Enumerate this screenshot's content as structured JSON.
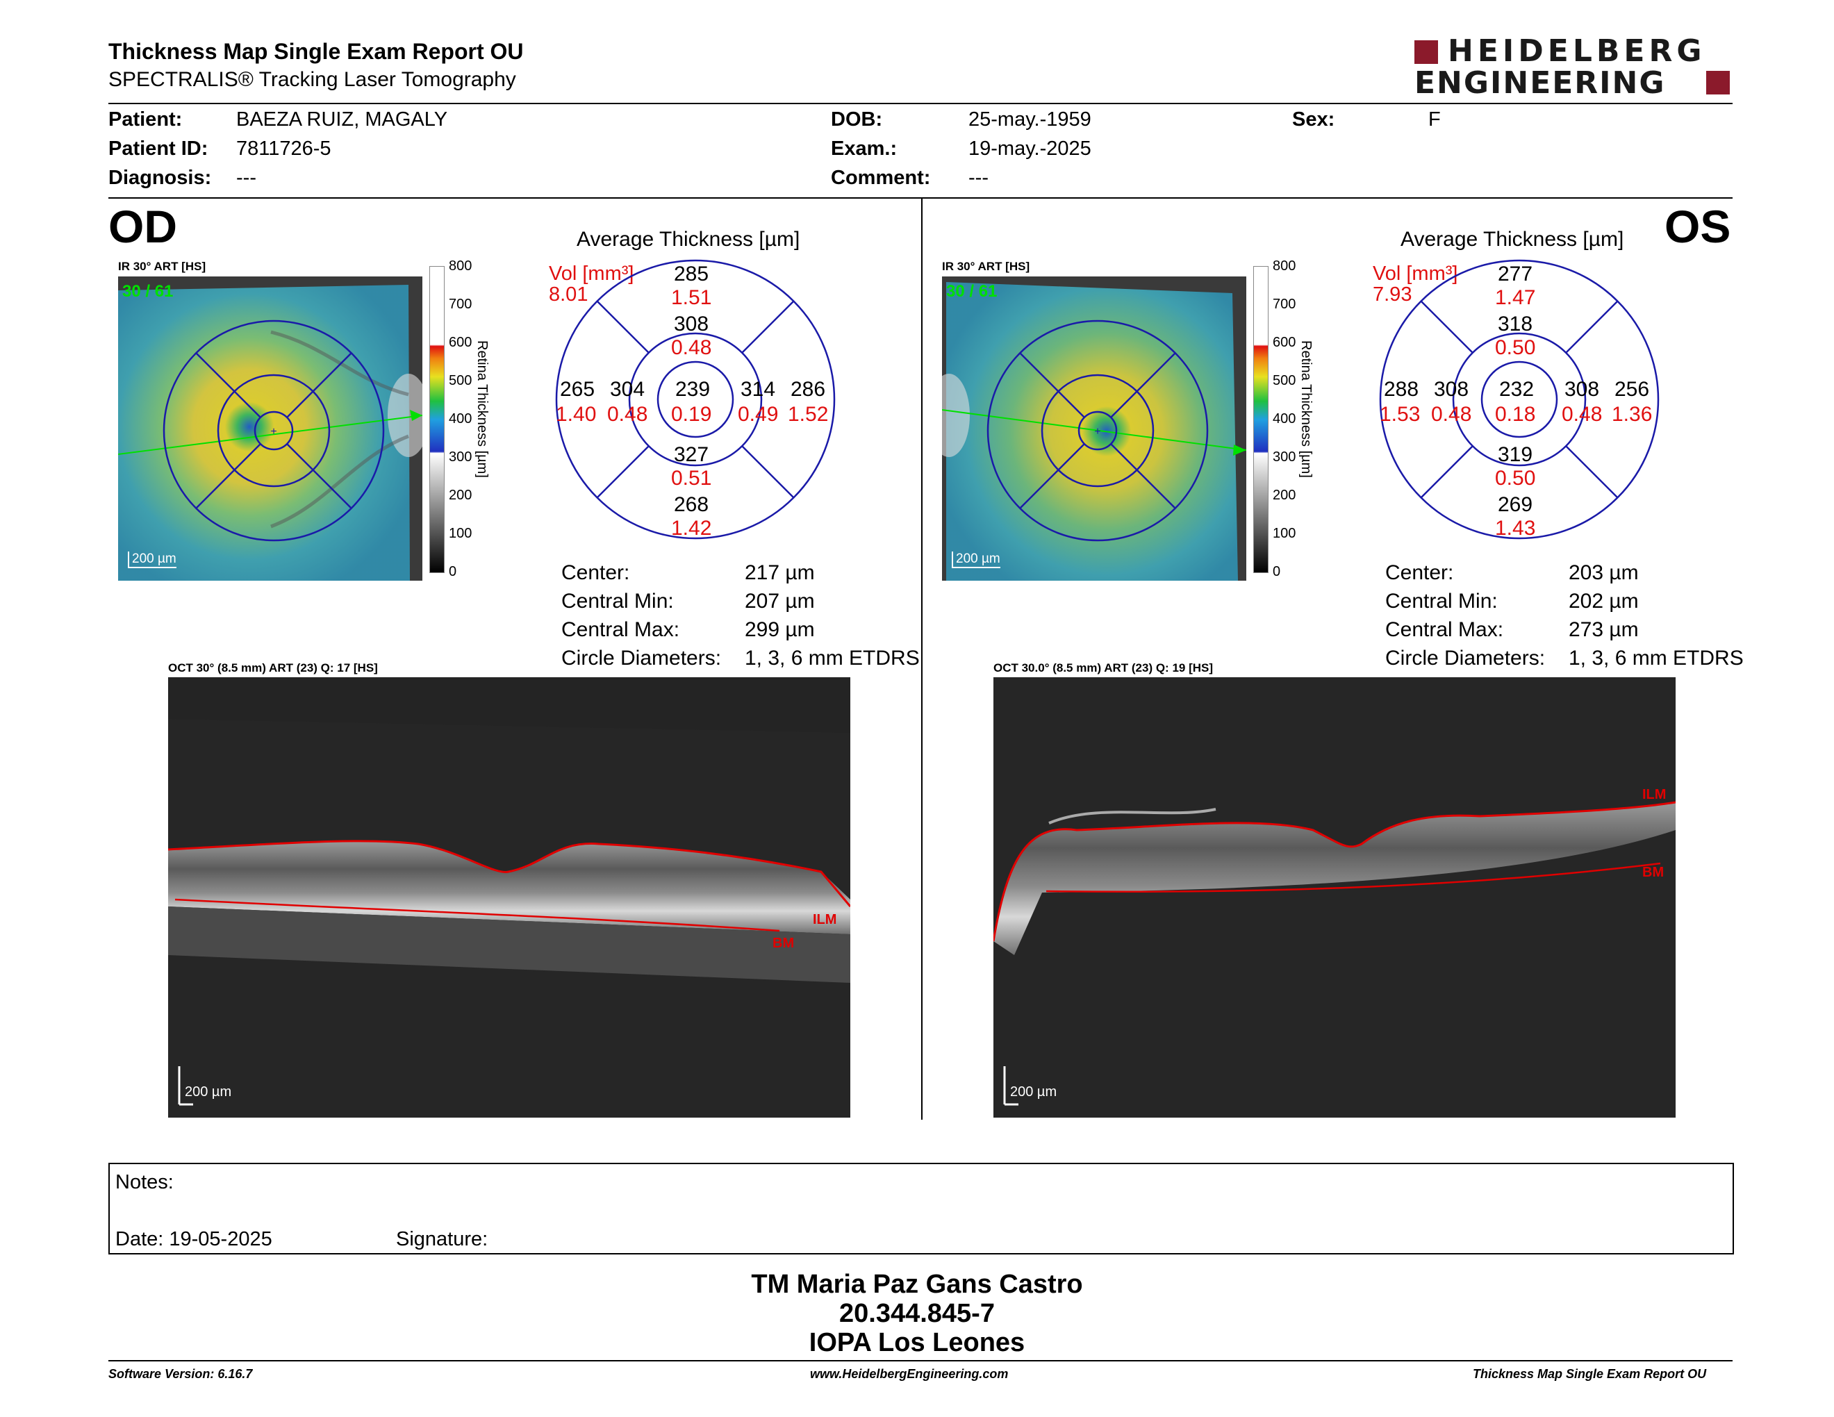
{
  "header": {
    "title": "Thickness Map Single Exam Report OU",
    "subtitle": "SPECTRALIS® Tracking Laser Tomography",
    "logo_line1": "HEIDELBERG",
    "logo_line2": "ENGINEERING",
    "brand_color": "#8b1a2b"
  },
  "patient": {
    "patient_label": "Patient:",
    "patient_value": "BAEZA RUIZ, MAGALY",
    "id_label": "Patient ID:",
    "id_value": "7811726-5",
    "diagnosis_label": "Diagnosis:",
    "diagnosis_value": "---",
    "dob_label": "DOB:",
    "dob_value": "25-may.-1959",
    "exam_label": "Exam.:",
    "exam_value": "19-may.-2025",
    "comment_label": "Comment:",
    "comment_value": "---",
    "sex_label": "Sex:",
    "sex_value": "F"
  },
  "od": {
    "eye": "OD",
    "ir_caption": "IR 30° ART [HS]",
    "frame_count": "30 / 61",
    "scale_label": "200 µm",
    "avg_title": "Average Thickness [µm]",
    "vol_label": "Vol [mm³]",
    "vol_value": "8.01",
    "sectors": {
      "superior_outer": [
        "285",
        "1.51"
      ],
      "superior_inner": [
        "308",
        "0.48"
      ],
      "temporal_outer": [
        "265",
        "1.40"
      ],
      "temporal_inner": [
        "304",
        "0.48"
      ],
      "center": [
        "239",
        "0.19"
      ],
      "nasal_inner": [
        "314",
        "0.49"
      ],
      "nasal_outer": [
        "286",
        "1.52"
      ],
      "inferior_inner": [
        "327",
        "0.51"
      ],
      "inferior_outer": [
        "268",
        "1.42"
      ]
    },
    "stats": [
      {
        "label": "Center:",
        "value": "217 µm"
      },
      {
        "label": "Central Min:",
        "value": "207 µm"
      },
      {
        "label": "Central Max:",
        "value": "299 µm"
      },
      {
        "label": "Circle Diameters:",
        "value": "1, 3, 6 mm ETDRS"
      }
    ],
    "oct_caption": "OCT 30° (8.5 mm) ART (23) Q: 17 [HS]",
    "oct_scale": "200 µm",
    "ilm_label": "ILM",
    "bm_label": "BM"
  },
  "os": {
    "eye": "OS",
    "ir_caption": "IR 30° ART [HS]",
    "frame_count": "30 / 61",
    "scale_label": "200 µm",
    "avg_title": "Average Thickness [µm]",
    "vol_label": "Vol [mm³]",
    "vol_value": "7.93",
    "sectors": {
      "superior_outer": [
        "277",
        "1.47"
      ],
      "superior_inner": [
        "318",
        "0.50"
      ],
      "temporal_outer": [
        "288",
        "1.53"
      ],
      "temporal_inner": [
        "308",
        "0.48"
      ],
      "center": [
        "232",
        "0.18"
      ],
      "nasal_inner": [
        "308",
        "0.48"
      ],
      "nasal_outer": [
        "256",
        "1.36"
      ],
      "inferior_inner": [
        "319",
        "0.50"
      ],
      "inferior_outer": [
        "269",
        "1.43"
      ]
    },
    "stats": [
      {
        "label": "Center:",
        "value": "203 µm"
      },
      {
        "label": "Central Min:",
        "value": "202 µm"
      },
      {
        "label": "Central Max:",
        "value": "273 µm"
      },
      {
        "label": "Circle Diameters:",
        "value": "1, 3, 6 mm ETDRS"
      }
    ],
    "oct_caption": "OCT 30.0° (8.5 mm) ART (23) Q: 19 [HS]",
    "oct_scale": "200 µm",
    "ilm_label": "ILM",
    "bm_label": "BM"
  },
  "colorbar": {
    "ticks": [
      "800",
      "700",
      "600",
      "500",
      "400",
      "300",
      "200",
      "100",
      "0"
    ],
    "label": "Retina Thickness [µm]"
  },
  "notes": {
    "notes_label": "Notes:",
    "date_label": "Date: 19-05-2025",
    "signature_label": "Signature:"
  },
  "signature_block": {
    "name": "TM Maria Paz Gans Castro",
    "rut": "20.344.845-7",
    "institution": "IOPA Los Leones"
  },
  "footer": {
    "software": "Software Version: 6.16.7",
    "website": "www.HeidelbergEngineering.com",
    "report": "Thickness Map Single Exam Report OU"
  },
  "colors": {
    "grid_blue": "#1a1aa8",
    "value_red": "#e01010",
    "overlay_green": "#00d000",
    "ilm_red": "#e00000"
  }
}
